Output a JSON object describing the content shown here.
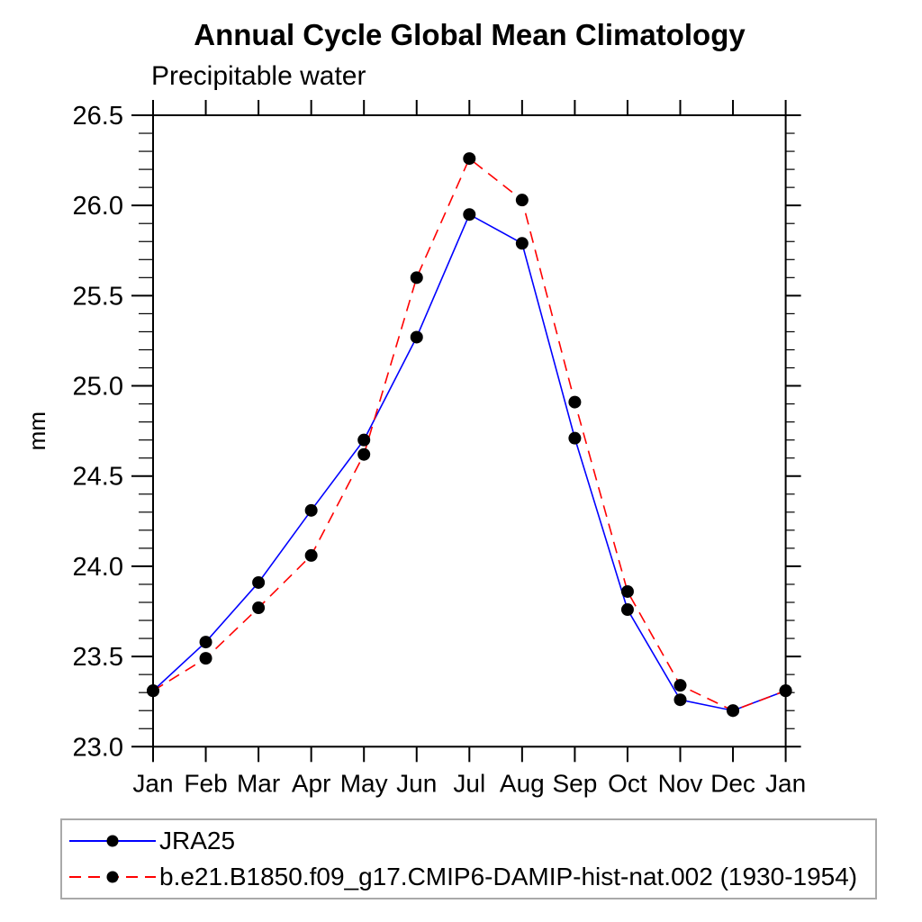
{
  "page": {
    "background": "#ffffff"
  },
  "chart_data": {
    "type": "line",
    "title": "Annual Cycle Global Mean Climatology",
    "subtitle": "Precipitable water",
    "ylabel": "mm",
    "ylim": [
      23.0,
      26.5
    ],
    "y_major_step": 0.5,
    "y_minor_step": 0.1,
    "grid": false,
    "legend_position": "bottom-left-box",
    "axis_color": "#000000",
    "marker_color": "#000000",
    "categories": [
      "Jan",
      "Feb",
      "Mar",
      "Apr",
      "May",
      "Jun",
      "Jul",
      "Aug",
      "Sep",
      "Oct",
      "Nov",
      "Dec",
      "Jan"
    ],
    "series": [
      {
        "name": "JRA25",
        "color": "#0000ff",
        "style": "solid",
        "marker": "filled-circle",
        "values": [
          23.31,
          23.58,
          23.91,
          24.31,
          24.7,
          25.27,
          25.95,
          25.79,
          24.71,
          23.76,
          23.26,
          23.2,
          23.31
        ]
      },
      {
        "name": "b.e21.B1850.f09_g17.CMIP6-DAMIP-hist-nat.002 (1930-1954)",
        "color": "#ff0000",
        "style": "dashed",
        "marker": "filled-circle",
        "values": [
          23.31,
          23.49,
          23.77,
          24.06,
          24.62,
          25.6,
          26.26,
          26.03,
          24.91,
          23.86,
          23.34,
          23.2,
          23.31
        ]
      }
    ]
  }
}
